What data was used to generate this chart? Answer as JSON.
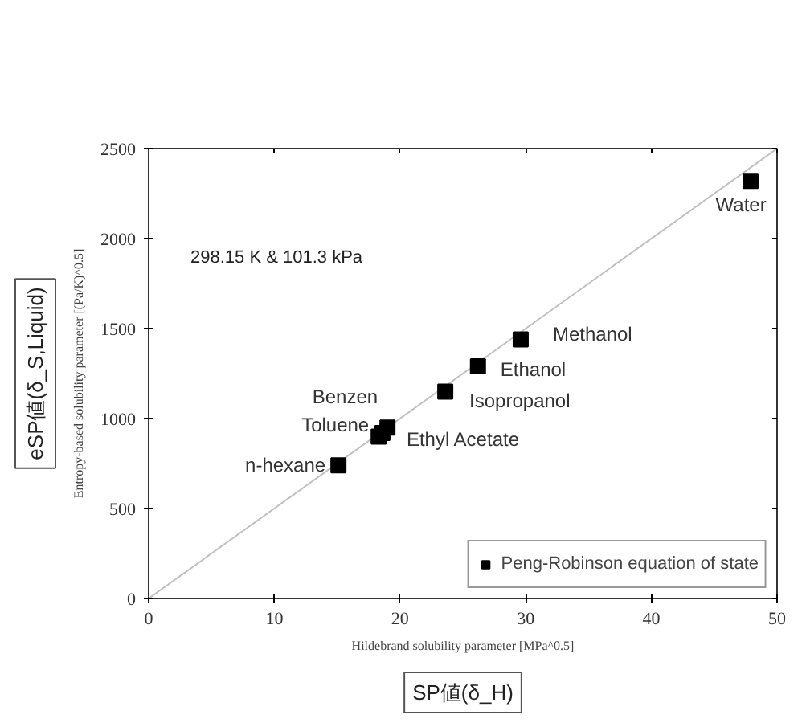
{
  "chart_data": {
    "type": "scatter",
    "xlabel": "Hildebrand solubility parameter [MPa^0.5]",
    "ylabel": "Entropy-based solubility parameter [(Pa/K)^0.5]",
    "xlim": [
      0,
      50
    ],
    "ylim": [
      0,
      2500
    ],
    "xticks": [
      0,
      10,
      20,
      30,
      40,
      50
    ],
    "yticks": [
      0,
      500,
      1000,
      1500,
      2000,
      2500
    ],
    "grid": false,
    "legend": "bottom right",
    "series": [
      {
        "type": "line",
        "color": "#c0c0c0",
        "x": [
          0,
          50
        ],
        "values": [
          0,
          2500
        ]
      },
      {
        "name": "Peng-Robinson equation of state",
        "color": "#000000",
        "marker": "square",
        "x": [
          15.1,
          18.3,
          19.0,
          18.6,
          23.6,
          26.2,
          29.6,
          47.9
        ],
        "values": [
          740,
          900,
          950,
          920,
          1150,
          1290,
          1440,
          2320
        ]
      }
    ],
    "annotations": [
      "298.15 K & 101.3 kPa",
      "eSP値(δ_S,Liquid)",
      "SP値(δ_H)",
      {
        "text": "n-hexane",
        "x": 15.1,
        "y": 740
      },
      {
        "text": "Toluene",
        "x": 18.3,
        "y": 900
      },
      {
        "text": "Benzen",
        "x": 19.0,
        "y": 950
      },
      {
        "text": "Ethyl Acetate",
        "x": 18.6,
        "y": 920
      },
      {
        "text": "Isopropanol",
        "x": 23.6,
        "y": 1150
      },
      {
        "text": "Ethanol",
        "x": 26.2,
        "y": 1290
      },
      {
        "text": "Methanol",
        "x": 29.6,
        "y": 1440
      },
      {
        "text": "Water",
        "x": 47.9,
        "y": 2320
      }
    ]
  }
}
